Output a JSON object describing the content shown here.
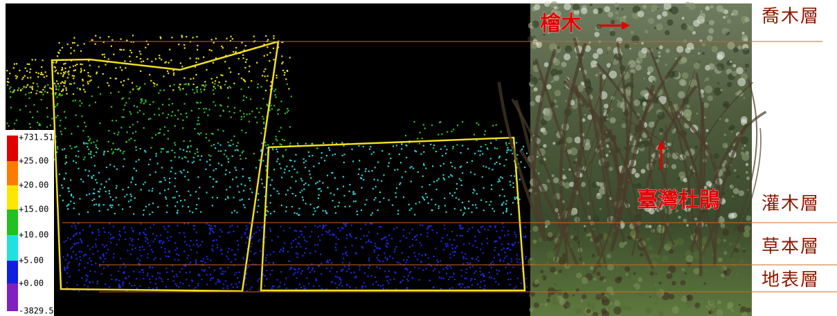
{
  "scale": {
    "labels": [
      "+731.51",
      "+25.00",
      "+20.00",
      "+15.00",
      "+10.00",
      "+5.00",
      "+0.00",
      "-3829.50"
    ]
  },
  "photo": {
    "tree_label": "檜木",
    "shrub_label": "臺灣杜鵑"
  },
  "layers": [
    "喬木層",
    "灌木層",
    "草本層",
    "地表層"
  ]
}
